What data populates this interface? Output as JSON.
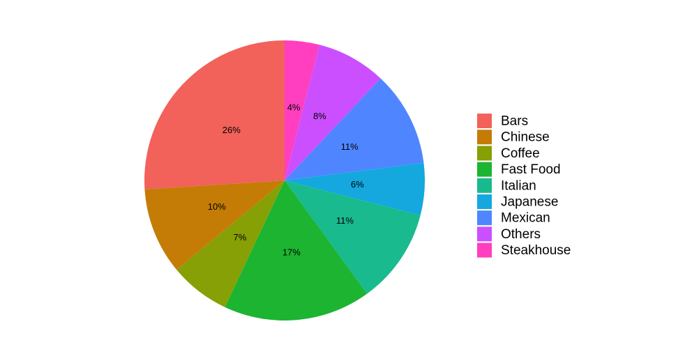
{
  "chart_data": {
    "type": "pie",
    "title": "",
    "legend_position": "right",
    "start_angle_deg": 0,
    "direction": "clockwise",
    "slices": [
      {
        "label": "Steakhouse",
        "value": 4,
        "display": "4%",
        "color": "#FF3FBF"
      },
      {
        "label": "Others",
        "value": 8,
        "display": "8%",
        "color": "#CC4FFF"
      },
      {
        "label": "Mexican",
        "value": 11,
        "display": "11%",
        "color": "#4F86FF"
      },
      {
        "label": "Japanese",
        "value": 6,
        "display": "6%",
        "color": "#14A8DF"
      },
      {
        "label": "Italian",
        "value": 11,
        "display": "11%",
        "color": "#18BA8E"
      },
      {
        "label": "Fast Food",
        "value": 17,
        "display": "17%",
        "color": "#1CB431"
      },
      {
        "label": "Coffee",
        "value": 7,
        "display": "7%",
        "color": "#86A006"
      },
      {
        "label": "Chinese",
        "value": 10,
        "display": "10%",
        "color": "#C57C07"
      },
      {
        "label": "Bars",
        "value": 26,
        "display": "26%",
        "color": "#F2615A"
      }
    ],
    "legend": [
      {
        "label": "Bars",
        "color": "#F2615A"
      },
      {
        "label": "Chinese",
        "color": "#C57C07"
      },
      {
        "label": "Coffee",
        "color": "#86A006"
      },
      {
        "label": "Fast Food",
        "color": "#1CB431"
      },
      {
        "label": "Italian",
        "color": "#18BA8E"
      },
      {
        "label": "Japanese",
        "color": "#14A8DF"
      },
      {
        "label": "Mexican",
        "color": "#4F86FF"
      },
      {
        "label": "Others",
        "color": "#CC4FFF"
      },
      {
        "label": "Steakhouse",
        "color": "#FF3FBF"
      }
    ]
  }
}
